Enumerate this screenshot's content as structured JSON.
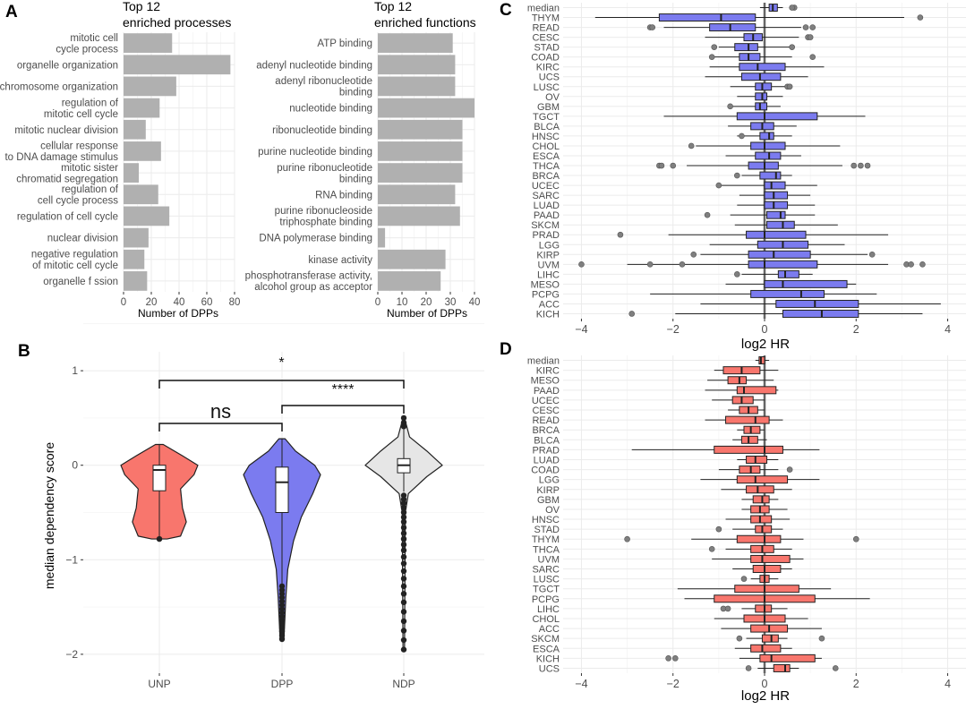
{
  "chart_data": [
    {
      "panel": "A",
      "type": "bar",
      "orientation": "horizontal",
      "title": "Top 12\nenriched processes",
      "xlabel": "Number of DPPs",
      "xlim": [
        0,
        80
      ],
      "xticks": [
        0,
        20,
        40,
        60,
        80
      ],
      "categories": [
        "mitotic cell\ncycle process",
        "organelle organization",
        "chromosome organization",
        "regulation of\nmitotic cell cycle",
        "mitotic nuclear division",
        "cellular response\nto DNA damage stimulus",
        "mitotic sister\nchromatid segregation",
        "regulation of\ncell cycle process",
        "regulation of cell cycle",
        "nuclear division",
        "negative regulation\nof mitotic cell cycle",
        "organelle f ssion"
      ],
      "values": [
        35,
        77,
        38,
        26,
        16,
        27,
        11,
        25,
        33,
        18,
        15,
        17
      ]
    },
    {
      "panel": "A2",
      "type": "bar",
      "orientation": "horizontal",
      "title": "Top 12\nenriched functions",
      "xlabel": "Number of DPPs",
      "xlim": [
        0,
        40
      ],
      "xticks": [
        0,
        10,
        20,
        30,
        40
      ],
      "categories": [
        "ATP binding",
        "adenyl nucleotide binding",
        "adenyl ribonucleotide\nbinding",
        "nucleotide binding",
        "ribonucleotide binding",
        "purine nucleotide binding",
        "purine ribonucleotide\nbinding",
        "RNA binding",
        "purine ribonucleoside\ntriphosphate binding",
        "DNA polymerase binding",
        "kinase activity",
        "phosphotransferase activity,\nalcohol group as acceptor"
      ],
      "values": [
        31,
        32,
        32,
        40,
        35,
        35,
        35,
        32,
        34,
        3,
        28,
        26
      ]
    },
    {
      "panel": "B",
      "type": "violin",
      "ylabel": "median dependency score",
      "ylim": [
        -2.2,
        1.2
      ],
      "yticks": [
        1,
        0,
        -1,
        -2
      ],
      "groups": [
        {
          "name": "UNP",
          "color": "#F8766D",
          "q1": -0.27,
          "median": -0.05,
          "q3": 0.0,
          "whisker_low": -0.78,
          "whisker_high": 0.22,
          "outliers": [
            -0.78
          ],
          "violin_width": [
            [
              0.22,
              0.1
            ],
            [
              0.1,
              0.6
            ],
            [
              0.0,
              1.0
            ],
            [
              -0.1,
              0.9
            ],
            [
              -0.25,
              0.55
            ],
            [
              -0.45,
              0.6
            ],
            [
              -0.6,
              0.7
            ],
            [
              -0.75,
              0.55
            ],
            [
              -0.78,
              0.2
            ]
          ]
        },
        {
          "name": "DPP",
          "color": "#7B7BEF",
          "q1": -0.5,
          "median": -0.18,
          "q3": -0.02,
          "whisker_low": -1.25,
          "whisker_high": 0.28,
          "outliers": [
            -1.28,
            -1.32,
            -1.36,
            -1.4,
            -1.44,
            -1.48,
            -1.52,
            -1.56,
            -1.6,
            -1.64,
            -1.68,
            -1.72,
            -1.76,
            -1.8,
            -1.84
          ],
          "violin_width": [
            [
              0.28,
              0.08
            ],
            [
              0.15,
              0.35
            ],
            [
              0.0,
              0.85
            ],
            [
              -0.1,
              1.0
            ],
            [
              -0.3,
              0.8
            ],
            [
              -0.55,
              0.5
            ],
            [
              -0.8,
              0.3
            ],
            [
              -1.1,
              0.15
            ],
            [
              -1.4,
              0.1
            ],
            [
              -1.84,
              0.05
            ]
          ]
        },
        {
          "name": "NDP",
          "color": "#E6E6E6",
          "q1": -0.08,
          "median": 0.0,
          "q3": 0.07,
          "whisker_low": -0.28,
          "whisker_high": 0.38,
          "outliers": [
            0.5,
            0.45,
            0.41,
            -0.32,
            -0.36,
            -0.4,
            -0.45,
            -0.5,
            -0.55,
            -0.6,
            -0.66,
            -0.72,
            -0.78,
            -0.84,
            -0.9,
            -0.97,
            -1.04,
            -1.12,
            -1.2,
            -1.28,
            -1.36,
            -1.45,
            -1.55,
            -1.65,
            -1.75,
            -1.85,
            -1.95
          ],
          "violin_width": [
            [
              0.5,
              0.02
            ],
            [
              0.3,
              0.15
            ],
            [
              0.15,
              0.6
            ],
            [
              0.0,
              1.0
            ],
            [
              -0.12,
              0.6
            ],
            [
              -0.3,
              0.12
            ],
            [
              -0.5,
              0.04
            ],
            [
              -1.95,
              0.02
            ]
          ]
        }
      ],
      "significance": [
        {
          "from": "UNP",
          "to": "NDP",
          "label": "*"
        },
        {
          "from": "DPP",
          "to": "NDP",
          "label": "****"
        },
        {
          "from": "UNP",
          "to": "DPP",
          "label": "ns"
        }
      ]
    },
    {
      "panel": "C",
      "type": "boxplot",
      "orientation": "horizontal",
      "color": "#7B7BEF",
      "xlabel": "log2 HR",
      "xlim": [
        -4.4,
        4.4
      ],
      "xticks": [
        -4,
        -2,
        0,
        2,
        4
      ],
      "categories": [
        "median",
        "THYM",
        "READ",
        "CESC",
        "STAD",
        "COAD",
        "KIRC",
        "UCS",
        "LUSC",
        "OV",
        "GBM",
        "TGCT",
        "BLCA",
        "HNSC",
        "CHOL",
        "ESCA",
        "THCA",
        "BRCA",
        "UCEC",
        "SARC",
        "LUAD",
        "PAAD",
        "SKCM",
        "PRAD",
        "LGG",
        "KIRP",
        "UVM",
        "LIHC",
        "MESO",
        "PCPG",
        "ACC",
        "KICH"
      ],
      "boxes": [
        [
          -0.1,
          0.1,
          0.18,
          0.28,
          0.4,
          [
            0.65,
            0.6
          ]
        ],
        [
          -3.7,
          -2.3,
          -0.95,
          -0.2,
          3.05,
          [
            3.4
          ]
        ],
        [
          -2.2,
          -1.2,
          -0.75,
          -0.2,
          0.8,
          [
            -2.5,
            -2.45,
            0.9,
            1.05
          ]
        ],
        [
          -1.3,
          -0.45,
          -0.25,
          -0.05,
          0.75,
          [
            0.95,
            1.0
          ]
        ],
        [
          -1.0,
          -0.65,
          -0.35,
          -0.15,
          0.55,
          [
            -1.1,
            0.6
          ]
        ],
        [
          -1.1,
          -0.55,
          -0.35,
          -0.1,
          0.6,
          [
            -1.15,
            1.05
          ]
        ],
        [
          -1.2,
          -0.55,
          -0.15,
          0.45,
          1.3,
          []
        ],
        [
          -1.3,
          -0.5,
          -0.1,
          0.35,
          0.95,
          []
        ],
        [
          -0.75,
          -0.2,
          -0.05,
          0.15,
          0.45,
          [
            0.5,
            0.55
          ]
        ],
        [
          -0.6,
          -0.2,
          -0.05,
          0.05,
          0.4,
          []
        ],
        [
          -0.7,
          -0.2,
          -0.1,
          0.05,
          0.35,
          [
            -0.75
          ]
        ],
        [
          -2.2,
          -0.6,
          0.0,
          1.15,
          2.2,
          []
        ],
        [
          -0.8,
          -0.3,
          -0.05,
          0.2,
          0.7,
          []
        ],
        [
          -0.6,
          -0.1,
          0.1,
          0.2,
          0.6,
          [
            -0.5
          ]
        ],
        [
          -1.5,
          -0.3,
          0.0,
          0.45,
          1.65,
          [
            -1.6
          ]
        ],
        [
          -0.85,
          -0.2,
          0.1,
          0.35,
          0.8,
          []
        ],
        [
          -1.7,
          -0.35,
          0.0,
          0.3,
          1.7,
          [
            -2.3,
            -2.25,
            -2.0,
            1.95,
            2.1,
            2.25
          ]
        ],
        [
          -0.5,
          -0.1,
          0.25,
          0.35,
          0.6,
          [
            -0.6
          ]
        ],
        [
          -0.95,
          0.0,
          0.15,
          0.45,
          1.15,
          [
            -1.0
          ]
        ],
        [
          -0.55,
          0.0,
          0.2,
          0.5,
          1.0,
          []
        ],
        [
          -0.6,
          0.0,
          0.2,
          0.5,
          1.1,
          []
        ],
        [
          -0.75,
          0.05,
          0.35,
          0.45,
          1.1,
          [
            -1.25
          ]
        ],
        [
          -0.65,
          0.05,
          0.4,
          0.65,
          1.6,
          []
        ],
        [
          -2.1,
          -0.4,
          0.0,
          0.9,
          2.7,
          [
            -3.15
          ]
        ],
        [
          -1.2,
          -0.15,
          0.4,
          0.95,
          1.75,
          []
        ],
        [
          -1.4,
          -0.35,
          0.2,
          1.0,
          2.25,
          [
            -1.55,
            2.35
          ]
        ],
        [
          -3.0,
          -0.35,
          0.0,
          1.15,
          2.7,
          [
            -4.0,
            -2.5,
            -1.8,
            3.1,
            3.2,
            3.45
          ]
        ],
        [
          -0.5,
          0.3,
          0.45,
          0.75,
          1.05,
          [
            -0.6
          ]
        ],
        [
          -0.85,
          0.0,
          0.4,
          1.8,
          2.0,
          []
        ],
        [
          -2.5,
          -0.3,
          0.8,
          1.3,
          2.45,
          []
        ],
        [
          -1.4,
          0.25,
          1.1,
          2.05,
          3.85,
          []
        ],
        [
          -1.95,
          0.4,
          1.25,
          2.05,
          3.45,
          [
            -2.9
          ]
        ]
      ]
    },
    {
      "panel": "D",
      "type": "boxplot",
      "orientation": "horizontal",
      "color": "#F8766D",
      "xlabel": "log2 HR",
      "xlim": [
        -4.4,
        4.4
      ],
      "xticks": [
        -4,
        -2,
        0,
        2,
        4
      ],
      "categories": [
        "median",
        "KIRC",
        "MESO",
        "PAAD",
        "UCEC",
        "CESC",
        "READ",
        "BRCA",
        "BLCA",
        "PRAD",
        "LUAD",
        "COAD",
        "LGG",
        "KIRP",
        "GBM",
        "OV",
        "HNSC",
        "STAD",
        "THYM",
        "THCA",
        "UVM",
        "SARC",
        "LUSC",
        "TGCT",
        "PCPG",
        "LIHC",
        "CHOL",
        "ACC",
        "SKCM",
        "ESCA",
        "KICH",
        "UCS"
      ],
      "boxes": [
        [
          -0.2,
          -0.12,
          -0.08,
          0.0,
          0.1,
          []
        ],
        [
          -1.1,
          -0.9,
          -0.5,
          -0.1,
          0.3,
          []
        ],
        [
          -1.25,
          -0.8,
          -0.55,
          -0.4,
          0.2,
          []
        ],
        [
          -1.3,
          -0.6,
          -0.45,
          0.25,
          0.3,
          []
        ],
        [
          -1.15,
          -0.7,
          -0.5,
          -0.25,
          0.0,
          []
        ],
        [
          -0.8,
          -0.55,
          -0.35,
          -0.15,
          0.0,
          []
        ],
        [
          -1.3,
          -0.85,
          -0.2,
          0.1,
          0.4,
          []
        ],
        [
          -0.6,
          -0.45,
          -0.3,
          -0.1,
          0.0,
          []
        ],
        [
          -0.7,
          -0.5,
          -0.35,
          -0.15,
          0.05,
          []
        ],
        [
          -2.9,
          -1.1,
          0.0,
          0.4,
          1.2,
          []
        ],
        [
          -0.6,
          -0.4,
          -0.2,
          0.05,
          0.3,
          []
        ],
        [
          -1.0,
          -0.55,
          -0.3,
          -0.1,
          0.3,
          [
            0.55
          ]
        ],
        [
          -1.4,
          -0.6,
          -0.2,
          0.5,
          1.2,
          []
        ],
        [
          -0.95,
          -0.4,
          -0.15,
          0.2,
          0.6,
          []
        ],
        [
          -0.5,
          -0.25,
          -0.05,
          0.1,
          0.3,
          []
        ],
        [
          -0.5,
          -0.3,
          -0.1,
          0.1,
          0.5,
          []
        ],
        [
          -0.85,
          -0.3,
          -0.1,
          0.15,
          0.55,
          []
        ],
        [
          -0.7,
          -0.2,
          -0.05,
          0.15,
          0.4,
          [
            -1.0
          ]
        ],
        [
          -1.6,
          -0.6,
          0.0,
          0.35,
          0.85,
          [
            -3.0,
            2.0
          ]
        ],
        [
          -0.85,
          -0.3,
          -0.05,
          0.2,
          0.6,
          [
            -1.15
          ]
        ],
        [
          -1.15,
          -0.3,
          -0.05,
          0.55,
          0.85,
          []
        ],
        [
          -0.7,
          -0.25,
          0.0,
          0.35,
          0.6,
          []
        ],
        [
          -0.3,
          -0.1,
          0.0,
          0.1,
          0.3,
          [
            -0.45
          ]
        ],
        [
          -1.9,
          -0.65,
          0.0,
          0.75,
          1.45,
          []
        ],
        [
          -1.75,
          -1.1,
          0.0,
          1.1,
          2.3,
          []
        ],
        [
          -0.5,
          -0.2,
          0.0,
          0.15,
          0.5,
          [
            -0.9,
            -0.8
          ]
        ],
        [
          -1.1,
          -0.45,
          0.0,
          0.45,
          0.95,
          []
        ],
        [
          -0.95,
          -0.3,
          0.1,
          0.5,
          1.25,
          []
        ],
        [
          -0.4,
          -0.05,
          0.15,
          0.3,
          0.5,
          [
            -0.55,
            1.25
          ]
        ],
        [
          -0.65,
          -0.3,
          -0.05,
          0.35,
          0.6,
          []
        ],
        [
          -0.55,
          -0.1,
          0.15,
          1.1,
          1.25,
          [
            -2.1,
            -1.95
          ]
        ],
        [
          -0.15,
          0.2,
          0.45,
          0.55,
          0.75,
          [
            -0.35,
            1.55
          ]
        ]
      ]
    }
  ],
  "panel_labels": {
    "a": "A",
    "b": "B",
    "c": "C",
    "d": "D"
  },
  "titles": {
    "proc_line1": "Top 12",
    "proc_line2": "enriched processes",
    "func_line1": "Top 12",
    "func_line2": "enriched functions"
  },
  "xlabels": {
    "proc": "Number of DPPs",
    "func": "Number of DPPs",
    "c": "log2 HR",
    "d": "log2 HR"
  },
  "ylabel_b": "median dependency score",
  "colors": {
    "bar": "#B0B0B0",
    "grid": "#EBEBEB",
    "blue": "#7B7BEF",
    "red": "#F8766D",
    "grey": "#E6E6E6"
  }
}
